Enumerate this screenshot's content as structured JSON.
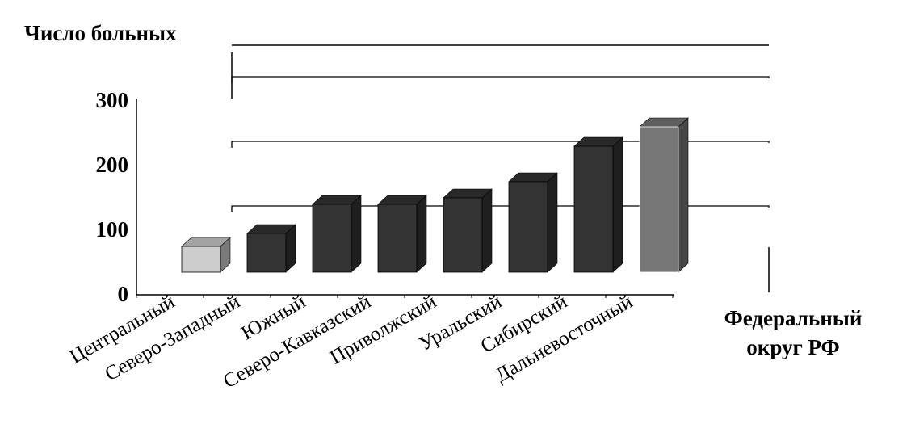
{
  "chart_data": {
    "type": "bar",
    "ylabel": "Число больных",
    "xlabel": "Федеральный округ РФ",
    "ylim": [
      0,
      300
    ],
    "yticks": [
      0,
      100,
      200,
      300
    ],
    "grid": true,
    "categories": [
      "Центральный",
      "Северо-Западный",
      "Южный",
      "Северо-Кавказский",
      "Приволжский",
      "Уральский",
      "Сибирский",
      "Дальневосточный"
    ],
    "values": [
      40,
      60,
      105,
      105,
      115,
      140,
      195,
      225
    ],
    "bar_colors": [
      "#cccccc",
      "#333333",
      "#333333",
      "#333333",
      "#333333",
      "#333333",
      "#333333",
      "#777777"
    ]
  }
}
